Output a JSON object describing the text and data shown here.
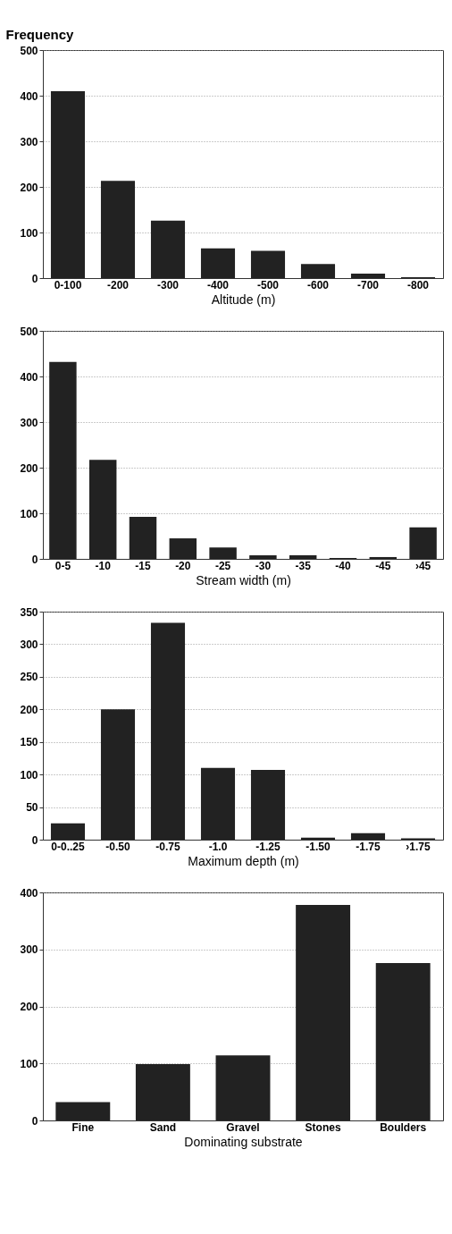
{
  "chart_data": [
    {
      "type": "bar",
      "ylabel": "Frequency",
      "xlabel": "Altitude (m)",
      "categories": [
        "0-100",
        "-200",
        "-300",
        "-400",
        "-500",
        "-600",
        "-700",
        "-800"
      ],
      "values": [
        410,
        213,
        126,
        65,
        60,
        31,
        10,
        2
      ],
      "color": "#222222",
      "ylim": [
        0,
        500
      ],
      "yticks": [
        0,
        100,
        200,
        300,
        400,
        500
      ],
      "grid": "y"
    },
    {
      "type": "bar",
      "xlabel": "Stream width (m)",
      "categories": [
        "0-5",
        "-10",
        "-15",
        "-20",
        "-25",
        "-30",
        "-35",
        "-40",
        "-45",
        "›45"
      ],
      "values": [
        432,
        217,
        92,
        45,
        25,
        8,
        8,
        2,
        4,
        69
      ],
      "color": "#222222",
      "ylim": [
        0,
        500
      ],
      "yticks": [
        0,
        100,
        200,
        300,
        400,
        500
      ],
      "grid": "y"
    },
    {
      "type": "bar",
      "xlabel": "Maximum depth (m)",
      "categories": [
        "0-0..25",
        "-0.50",
        "-0.75",
        "-1.0",
        "-1.25",
        "-1.50",
        "-1.75",
        "›1.75"
      ],
      "values": [
        25,
        200,
        333,
        110,
        107,
        3,
        10,
        2
      ],
      "color": "#222222",
      "ylim": [
        0,
        350
      ],
      "yticks": [
        0,
        50,
        100,
        150,
        200,
        250,
        300,
        350
      ],
      "grid": "y"
    },
    {
      "type": "bar",
      "xlabel": "Dominating substrate",
      "categories": [
        "Fine",
        "Sand",
        "Gravel",
        "Stones",
        "Boulders"
      ],
      "values": [
        32,
        99,
        114,
        378,
        276
      ],
      "color": "#222222",
      "ylim": [
        0,
        400
      ],
      "yticks": [
        0,
        100,
        200,
        300,
        400
      ],
      "grid": "y"
    }
  ]
}
